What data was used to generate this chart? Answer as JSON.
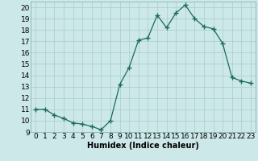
{
  "x": [
    0,
    1,
    2,
    3,
    4,
    5,
    6,
    7,
    8,
    9,
    10,
    11,
    12,
    13,
    14,
    15,
    16,
    17,
    18,
    19,
    20,
    21,
    22,
    23
  ],
  "y": [
    11.0,
    11.0,
    10.5,
    10.2,
    9.8,
    9.7,
    9.5,
    9.2,
    10.0,
    13.2,
    14.7,
    17.1,
    17.3,
    19.3,
    18.2,
    19.5,
    20.2,
    19.0,
    18.3,
    18.1,
    16.8,
    13.8,
    13.5,
    13.3
  ],
  "title": "",
  "xlabel": "Humidex (Indice chaleur)",
  "ylabel": "",
  "xlim": [
    -0.5,
    23.5
  ],
  "ylim": [
    9,
    20.5
  ],
  "yticks": [
    9,
    10,
    11,
    12,
    13,
    14,
    15,
    16,
    17,
    18,
    19,
    20
  ],
  "xticks": [
    0,
    1,
    2,
    3,
    4,
    5,
    6,
    7,
    8,
    9,
    10,
    11,
    12,
    13,
    14,
    15,
    16,
    17,
    18,
    19,
    20,
    21,
    22,
    23
  ],
  "line_color": "#1a6b5a",
  "marker": "+",
  "marker_size": 4,
  "bg_color": "#cce8e8",
  "grid_color": "#aacccc",
  "title_fontsize": 7,
  "label_fontsize": 7,
  "tick_fontsize": 6.5
}
